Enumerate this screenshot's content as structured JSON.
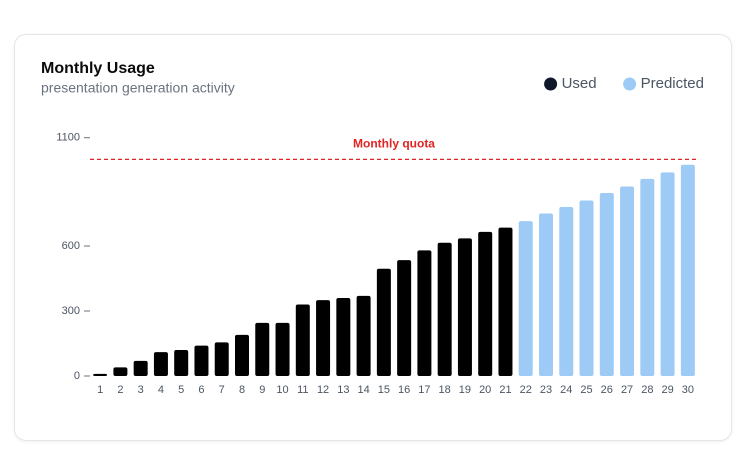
{
  "chart_data": {
    "type": "bar",
    "title": "Monthly Usage",
    "subtitle": "presentation generation activity",
    "categories": [
      "1",
      "2",
      "3",
      "4",
      "5",
      "6",
      "7",
      "8",
      "9",
      "10",
      "11",
      "12",
      "13",
      "14",
      "15",
      "16",
      "17",
      "18",
      "19",
      "20",
      "21",
      "22",
      "23",
      "24",
      "25",
      "26",
      "27",
      "28",
      "29",
      "30"
    ],
    "series": [
      {
        "name": "Used",
        "color": "#000000",
        "legend_color": "#0f172a",
        "values": [
          10,
          40,
          70,
          110,
          120,
          140,
          155,
          190,
          245,
          245,
          330,
          350,
          360,
          370,
          495,
          535,
          580,
          615,
          635,
          665,
          685,
          null,
          null,
          null,
          null,
          null,
          null,
          null,
          null,
          null
        ]
      },
      {
        "name": "Predicted",
        "color": "#9ecbf5",
        "legend_color": "#9ecbf5",
        "values": [
          null,
          null,
          null,
          null,
          null,
          null,
          null,
          null,
          null,
          null,
          null,
          null,
          null,
          null,
          null,
          null,
          null,
          null,
          null,
          null,
          null,
          715,
          750,
          780,
          810,
          845,
          875,
          910,
          940,
          975
        ]
      }
    ],
    "reference_line": {
      "label": "Monthly quota",
      "value": 1000,
      "color": "#e02424"
    },
    "ylim": [
      0,
      1100
    ],
    "yticks": [
      0,
      300,
      600,
      1100
    ],
    "legend": "top-right"
  }
}
